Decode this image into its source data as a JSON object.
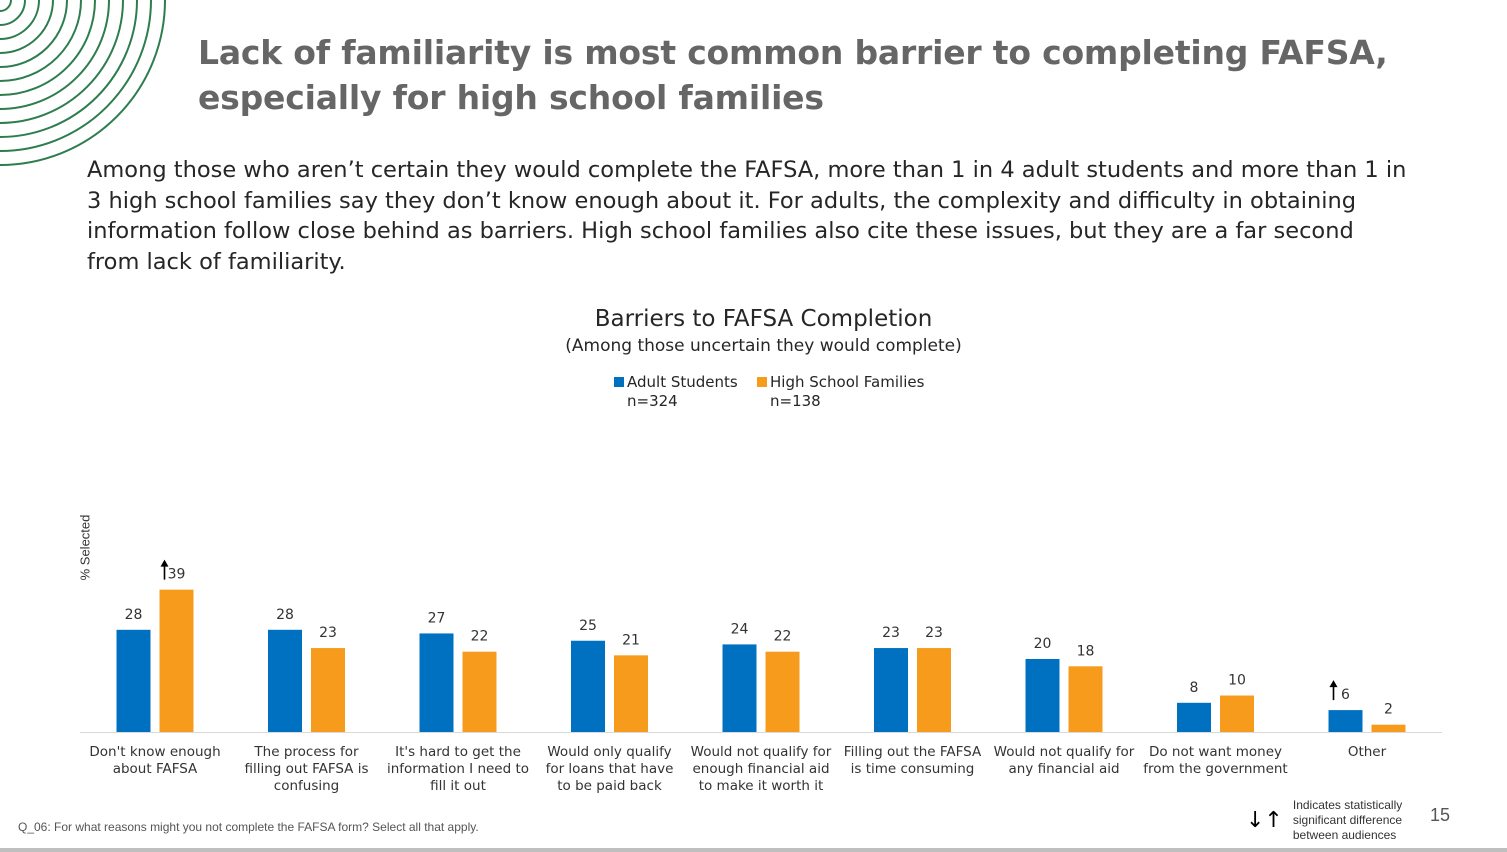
{
  "slide": {
    "title": "Lack of familiarity is most common barrier to completing FAFSA, especially for high school families",
    "subtitle": "Among those who aren’t certain they would complete the FAFSA, more than 1 in 4 adult students and more than 1 in 3 high school families say they don’t know enough about it. For adults, the complexity and difficulty in obtaining information follow close behind as barriers. High school families also cite these issues, but they are a far second from lack of familiarity.",
    "footnote": "Q_06: For what reasons might you not complete the FAFSA form? Select all that apply.",
    "sig_legend_text": "Indicates statistically significant difference between audiences",
    "page_number": "15",
    "accent_color": "#2e7d4f"
  },
  "chart_data": {
    "type": "bar",
    "title": "Barriers to FAFSA Completion",
    "subtitle": "(Among those uncertain they would complete)",
    "ylabel": "% Selected",
    "ylim": [
      0,
      45
    ],
    "legend_position": "top-center",
    "categories": [
      "Don't know enough about FAFSA",
      "The process for filling out FAFSA is confusing",
      "It's hard to get the information I need to fill it out",
      "Would only qualify for loans that have to be paid back",
      "Would not qualify for enough financial aid to make it worth it",
      "Filling out the FAFSA is time consuming",
      "Would not qualify for any financial aid",
      "Do not want money from the government",
      "Other"
    ],
    "series": [
      {
        "name": "Adult Students",
        "n": "n=324",
        "color": "#0070c0",
        "values": [
          28,
          28,
          27,
          25,
          24,
          23,
          20,
          8,
          6
        ],
        "significant_higher": [
          false,
          false,
          false,
          false,
          false,
          false,
          false,
          false,
          true
        ]
      },
      {
        "name": "High School Families",
        "n": "n=138",
        "color": "#f79b1c",
        "values": [
          39,
          23,
          22,
          21,
          22,
          23,
          18,
          10,
          2
        ],
        "significant_higher": [
          true,
          false,
          false,
          false,
          false,
          false,
          false,
          false,
          false
        ]
      }
    ]
  }
}
